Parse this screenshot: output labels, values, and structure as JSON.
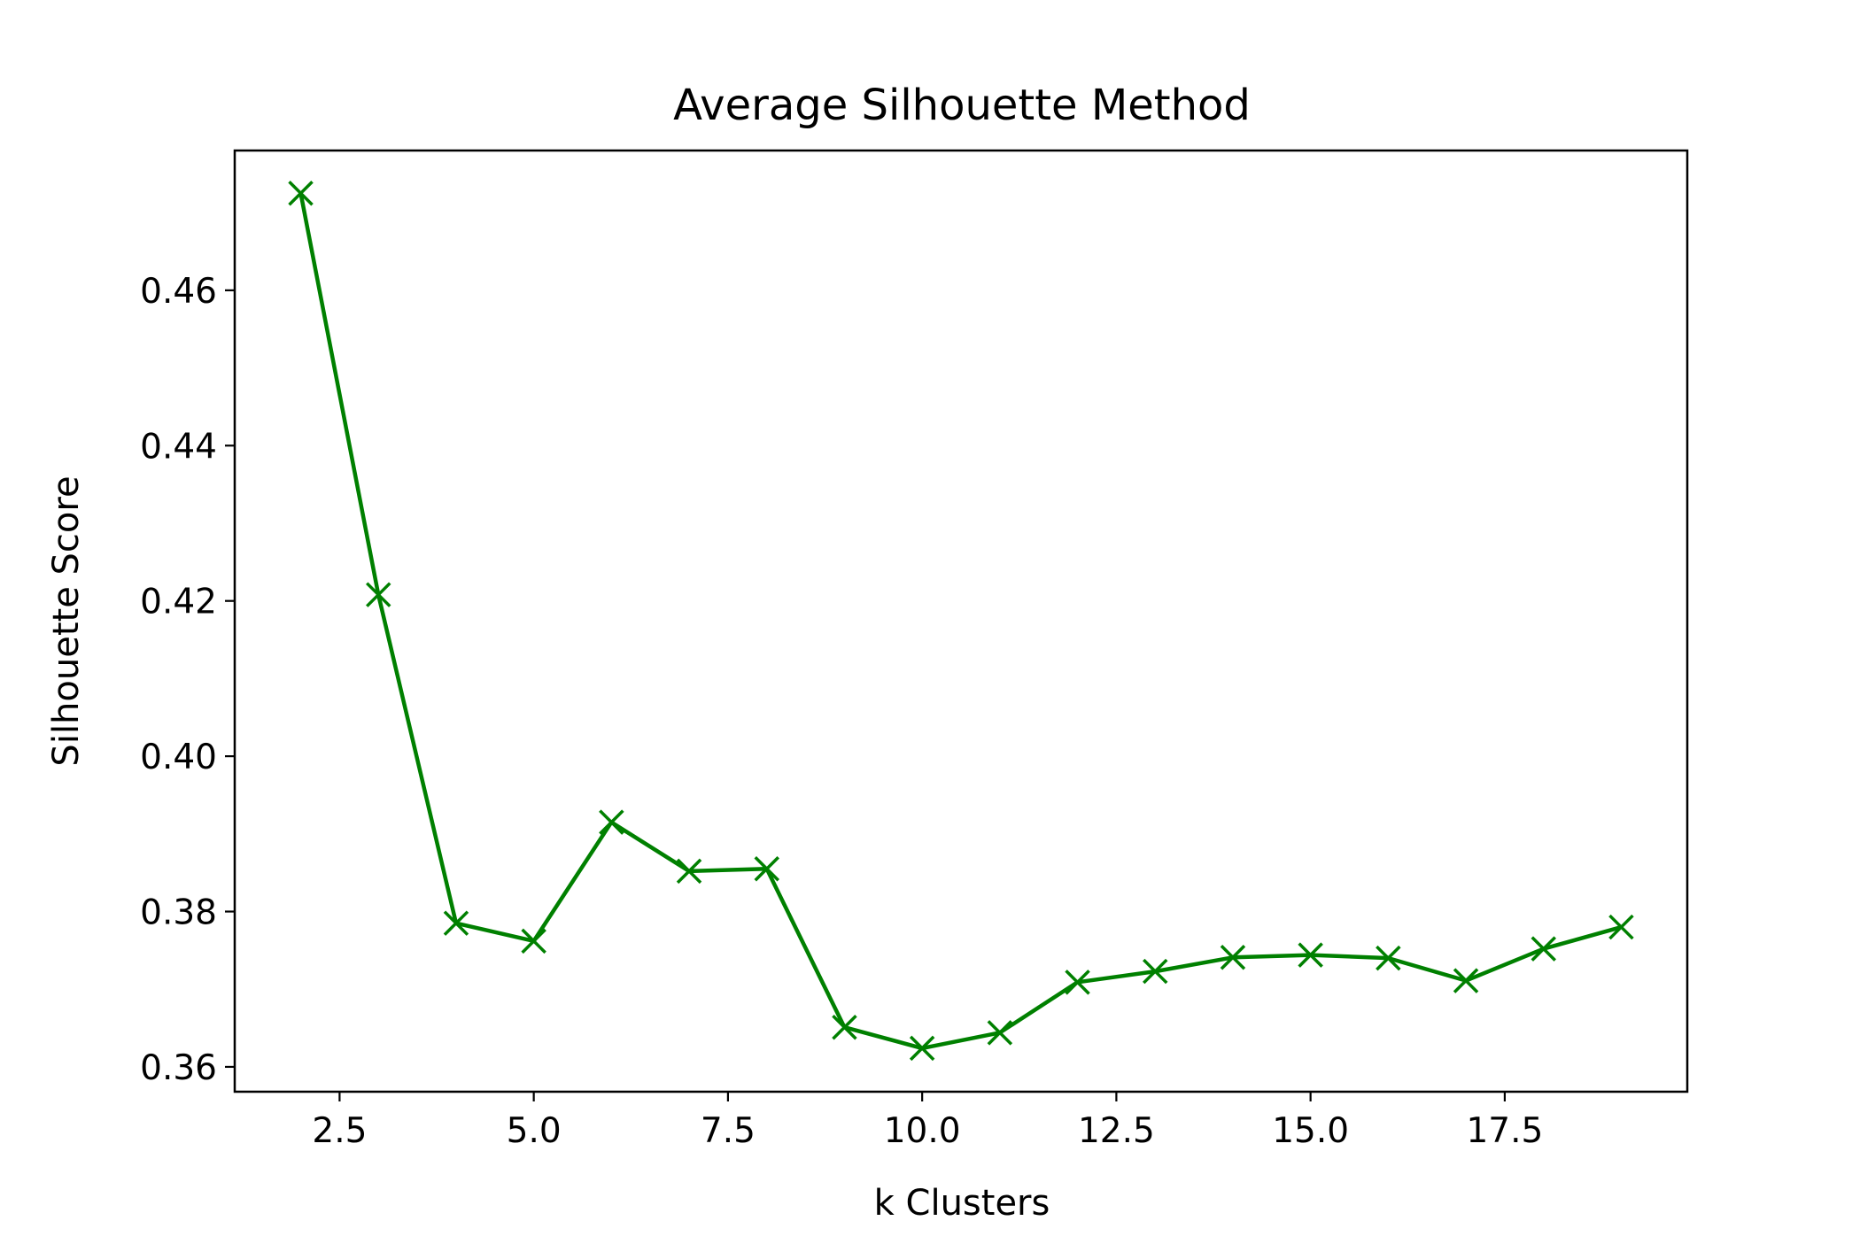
{
  "chart_data": {
    "type": "line",
    "title": "Average Silhouette Method",
    "xlabel": "k Clusters",
    "ylabel": "Silhouette Score",
    "xlim": [
      1.15,
      19.85
    ],
    "ylim": [
      0.3568,
      0.478
    ],
    "xticks": [
      2.5,
      5.0,
      7.5,
      10.0,
      12.5,
      15.0,
      17.5
    ],
    "xtick_labels": [
      "2.5",
      "5.0",
      "7.5",
      "10.0",
      "12.5",
      "15.0",
      "17.5"
    ],
    "yticks": [
      0.36,
      0.38,
      0.4,
      0.42,
      0.44,
      0.46
    ],
    "ytick_labels": [
      "0.36",
      "0.38",
      "0.40",
      "0.42",
      "0.44",
      "0.46"
    ],
    "grid": false,
    "legend": false,
    "marker": "x",
    "color": "#008000",
    "series": [
      {
        "x": [
          2,
          3,
          4,
          5,
          6,
          7,
          8,
          9,
          10,
          11,
          12,
          13,
          14,
          15,
          16,
          17,
          18,
          19
        ],
        "values": [
          0.4725,
          0.4208,
          0.3785,
          0.3762,
          0.3915,
          0.3852,
          0.3855,
          0.3651,
          0.3624,
          0.3644,
          0.3709,
          0.3723,
          0.3741,
          0.3744,
          0.374,
          0.3711,
          0.3752,
          0.378
        ]
      }
    ]
  }
}
